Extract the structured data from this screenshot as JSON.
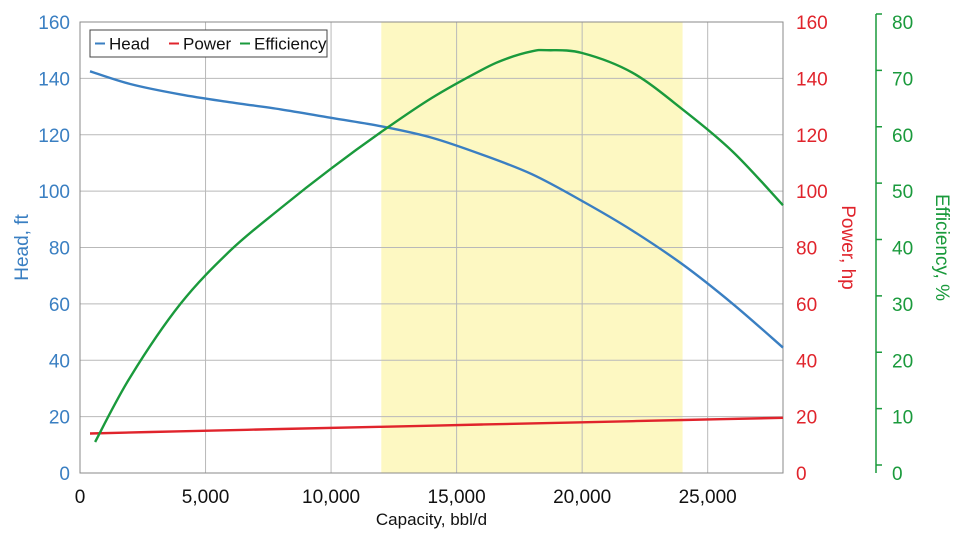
{
  "chart_data": {
    "type": "line",
    "title": "",
    "xlabel": "Capacity, bbl/d",
    "xlim": [
      0,
      28000
    ],
    "xticks": [
      0,
      5000,
      10000,
      15000,
      20000,
      25000
    ],
    "xtick_labels": [
      "0",
      "5,000",
      "10,000",
      "15,000",
      "20,000",
      "25,000"
    ],
    "grid": true,
    "shaded_region": {
      "x_start": 12000,
      "x_end": 24000,
      "color": "#fdf8c2"
    },
    "legend": {
      "position": "top-left",
      "entries": [
        "Head",
        "Power",
        "Efficiency"
      ]
    },
    "axes": {
      "head": {
        "label": "Head, ft",
        "ylim": [
          0,
          160
        ],
        "ticks": [
          0,
          20,
          40,
          60,
          80,
          100,
          120,
          140,
          160
        ],
        "tick_labels": [
          "0",
          "20",
          "40",
          "60",
          "80",
          "100",
          "120",
          "140",
          "160"
        ],
        "color": "#3a7fc2",
        "side": "left"
      },
      "power": {
        "label": "Power, hp",
        "ylim": [
          0,
          160
        ],
        "ticks": [
          0,
          20,
          40,
          60,
          80,
          100,
          120,
          140,
          160
        ],
        "tick_labels": [
          "0",
          "20",
          "40",
          "60",
          "80",
          "100",
          "120",
          "140",
          "160"
        ],
        "color": "#e0242c",
        "side": "right"
      },
      "efficiency": {
        "label": "Efficiency, %",
        "ylim": [
          0,
          80
        ],
        "ticks": [
          0,
          10,
          20,
          30,
          40,
          50,
          60,
          70,
          80
        ],
        "tick_labels": [
          "0",
          "10",
          "20",
          "30",
          "40",
          "50",
          "60",
          "70",
          "80"
        ],
        "color": "#1a9a3c",
        "side": "right-outer"
      }
    },
    "series": [
      {
        "name": "Head",
        "axis": "head",
        "color": "#3a7fc2",
        "x": [
          400,
          2000,
          4000,
          6000,
          8000,
          10000,
          12000,
          14000,
          16000,
          18000,
          20000,
          22000,
          24000,
          26000,
          28000
        ],
        "y": [
          142.5,
          138,
          134.3,
          131.5,
          129,
          126,
          123,
          119,
          113,
          106,
          96.5,
          86,
          74,
          60,
          44.5
        ]
      },
      {
        "name": "Power",
        "axis": "power",
        "color": "#e0242c",
        "x": [
          400,
          4000,
          8000,
          12000,
          16000,
          20000,
          24000,
          28000
        ],
        "y": [
          14,
          14.8,
          15.6,
          16.4,
          17.2,
          18,
          18.8,
          19.6
        ]
      },
      {
        "name": "Efficiency",
        "axis": "efficiency",
        "color": "#1a9a3c",
        "x": [
          600,
          2000,
          4000,
          6000,
          8000,
          10000,
          12000,
          14000,
          16000,
          17000,
          18000,
          18600,
          20000,
          22000,
          24000,
          26000,
          28000
        ],
        "y": [
          5.5,
          17,
          30,
          39.5,
          47,
          54,
          60.5,
          66.5,
          71.5,
          73.5,
          74.8,
          75,
          74.5,
          71,
          64.5,
          57,
          47.5
        ]
      }
    ]
  }
}
